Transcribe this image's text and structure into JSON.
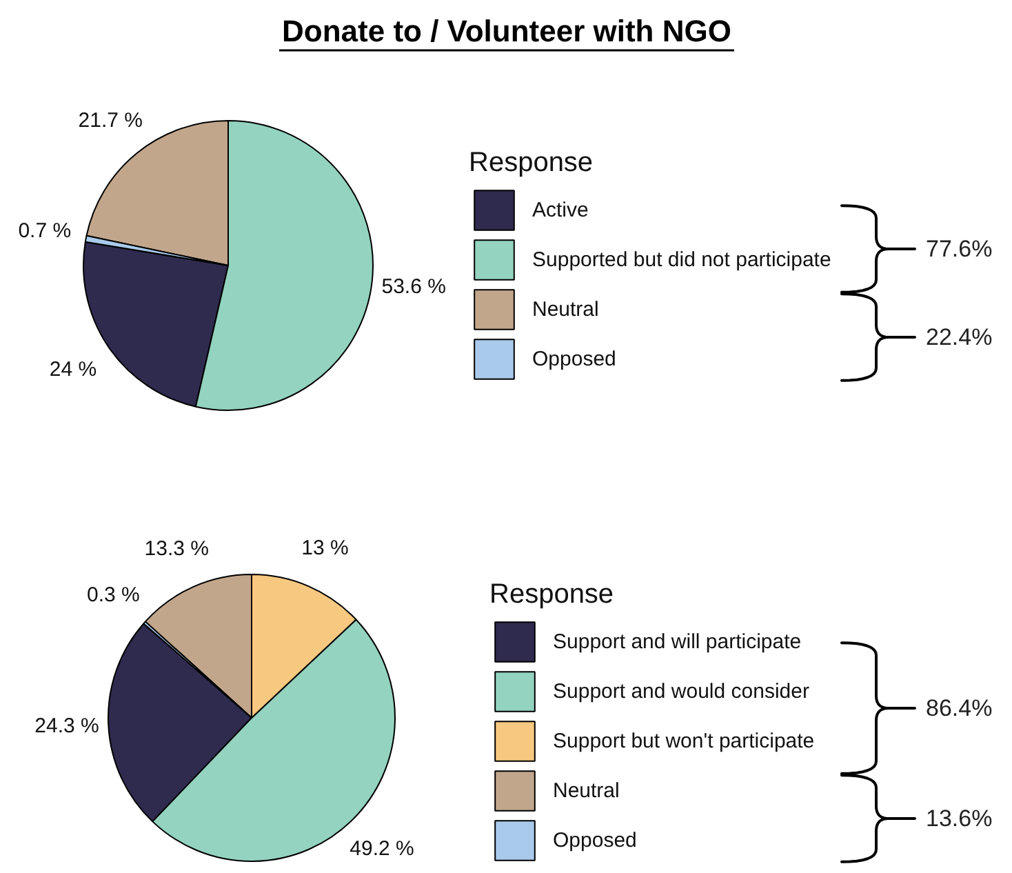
{
  "chart_data": [
    {
      "type": "pie",
      "title": "Donate to / Volunteer with NGO",
      "legend_title": "Response",
      "legend": "right",
      "categories": [
        "Active",
        "Supported but did not participate",
        "Neutral",
        "Opposed"
      ],
      "values": [
        24,
        53.6,
        21.7,
        0.7
      ],
      "colors": [
        "#2f2b4f",
        "#93d3bf",
        "#c2a68c",
        "#a9caeb"
      ],
      "value_labels": [
        "24 %",
        "53.6 %",
        "21.7 %",
        "0.7 %"
      ],
      "annotations": [
        "77.6%",
        "22.4%"
      ]
    },
    {
      "type": "pie",
      "legend_title": "Response",
      "legend": "right",
      "categories": [
        "Support and will participate",
        "Support and would consider",
        "Support but won't participate",
        "Neutral",
        "Opposed"
      ],
      "values": [
        24.3,
        49.2,
        13,
        13.3,
        0.3
      ],
      "colors": [
        "#2f2b4f",
        "#93d3bf",
        "#f7c880",
        "#c2a68c",
        "#a9caeb"
      ],
      "value_labels": [
        "24.3 %",
        "49.2 %",
        "13 %",
        "13.3 %",
        "0.3 %"
      ],
      "annotations": [
        "86.4%",
        "13.6%"
      ]
    }
  ]
}
